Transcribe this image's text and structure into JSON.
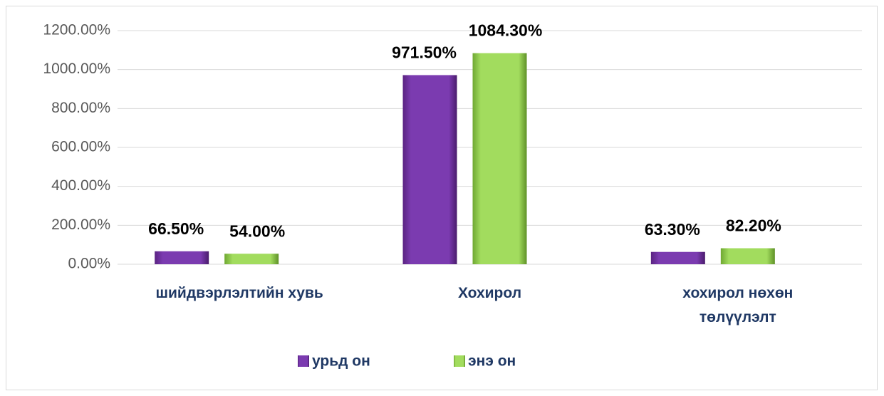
{
  "chart_data": {
    "type": "bar",
    "categories": [
      "шийдвэрлэлтийн хувь",
      "Хохирол",
      "хохирол нөхөн төлүүлэлт"
    ],
    "series": [
      {
        "name": "урьд он",
        "color": "#7030a0",
        "values": [
          66.5,
          971.5,
          63.3
        ],
        "value_labels": [
          "66.50%",
          "971.50%",
          "63.30%"
        ]
      },
      {
        "name": "энэ он",
        "color": "#92d050",
        "values": [
          54.0,
          1084.3,
          82.2
        ],
        "value_labels": [
          "54.00%",
          "1084.30%",
          "82.20%"
        ]
      }
    ],
    "ylim": [
      0,
      1200
    ],
    "yticks": [
      {
        "value": 0,
        "label": "0.00%"
      },
      {
        "value": 200,
        "label": "200.00%"
      },
      {
        "value": 400,
        "label": "400.00%"
      },
      {
        "value": 600,
        "label": "600.00%"
      },
      {
        "value": 800,
        "label": "800.00%"
      },
      {
        "value": 1000,
        "label": "1000.00%"
      },
      {
        "value": 1200,
        "label": "1200.00%"
      }
    ],
    "grid": true,
    "legend": "bottom"
  }
}
